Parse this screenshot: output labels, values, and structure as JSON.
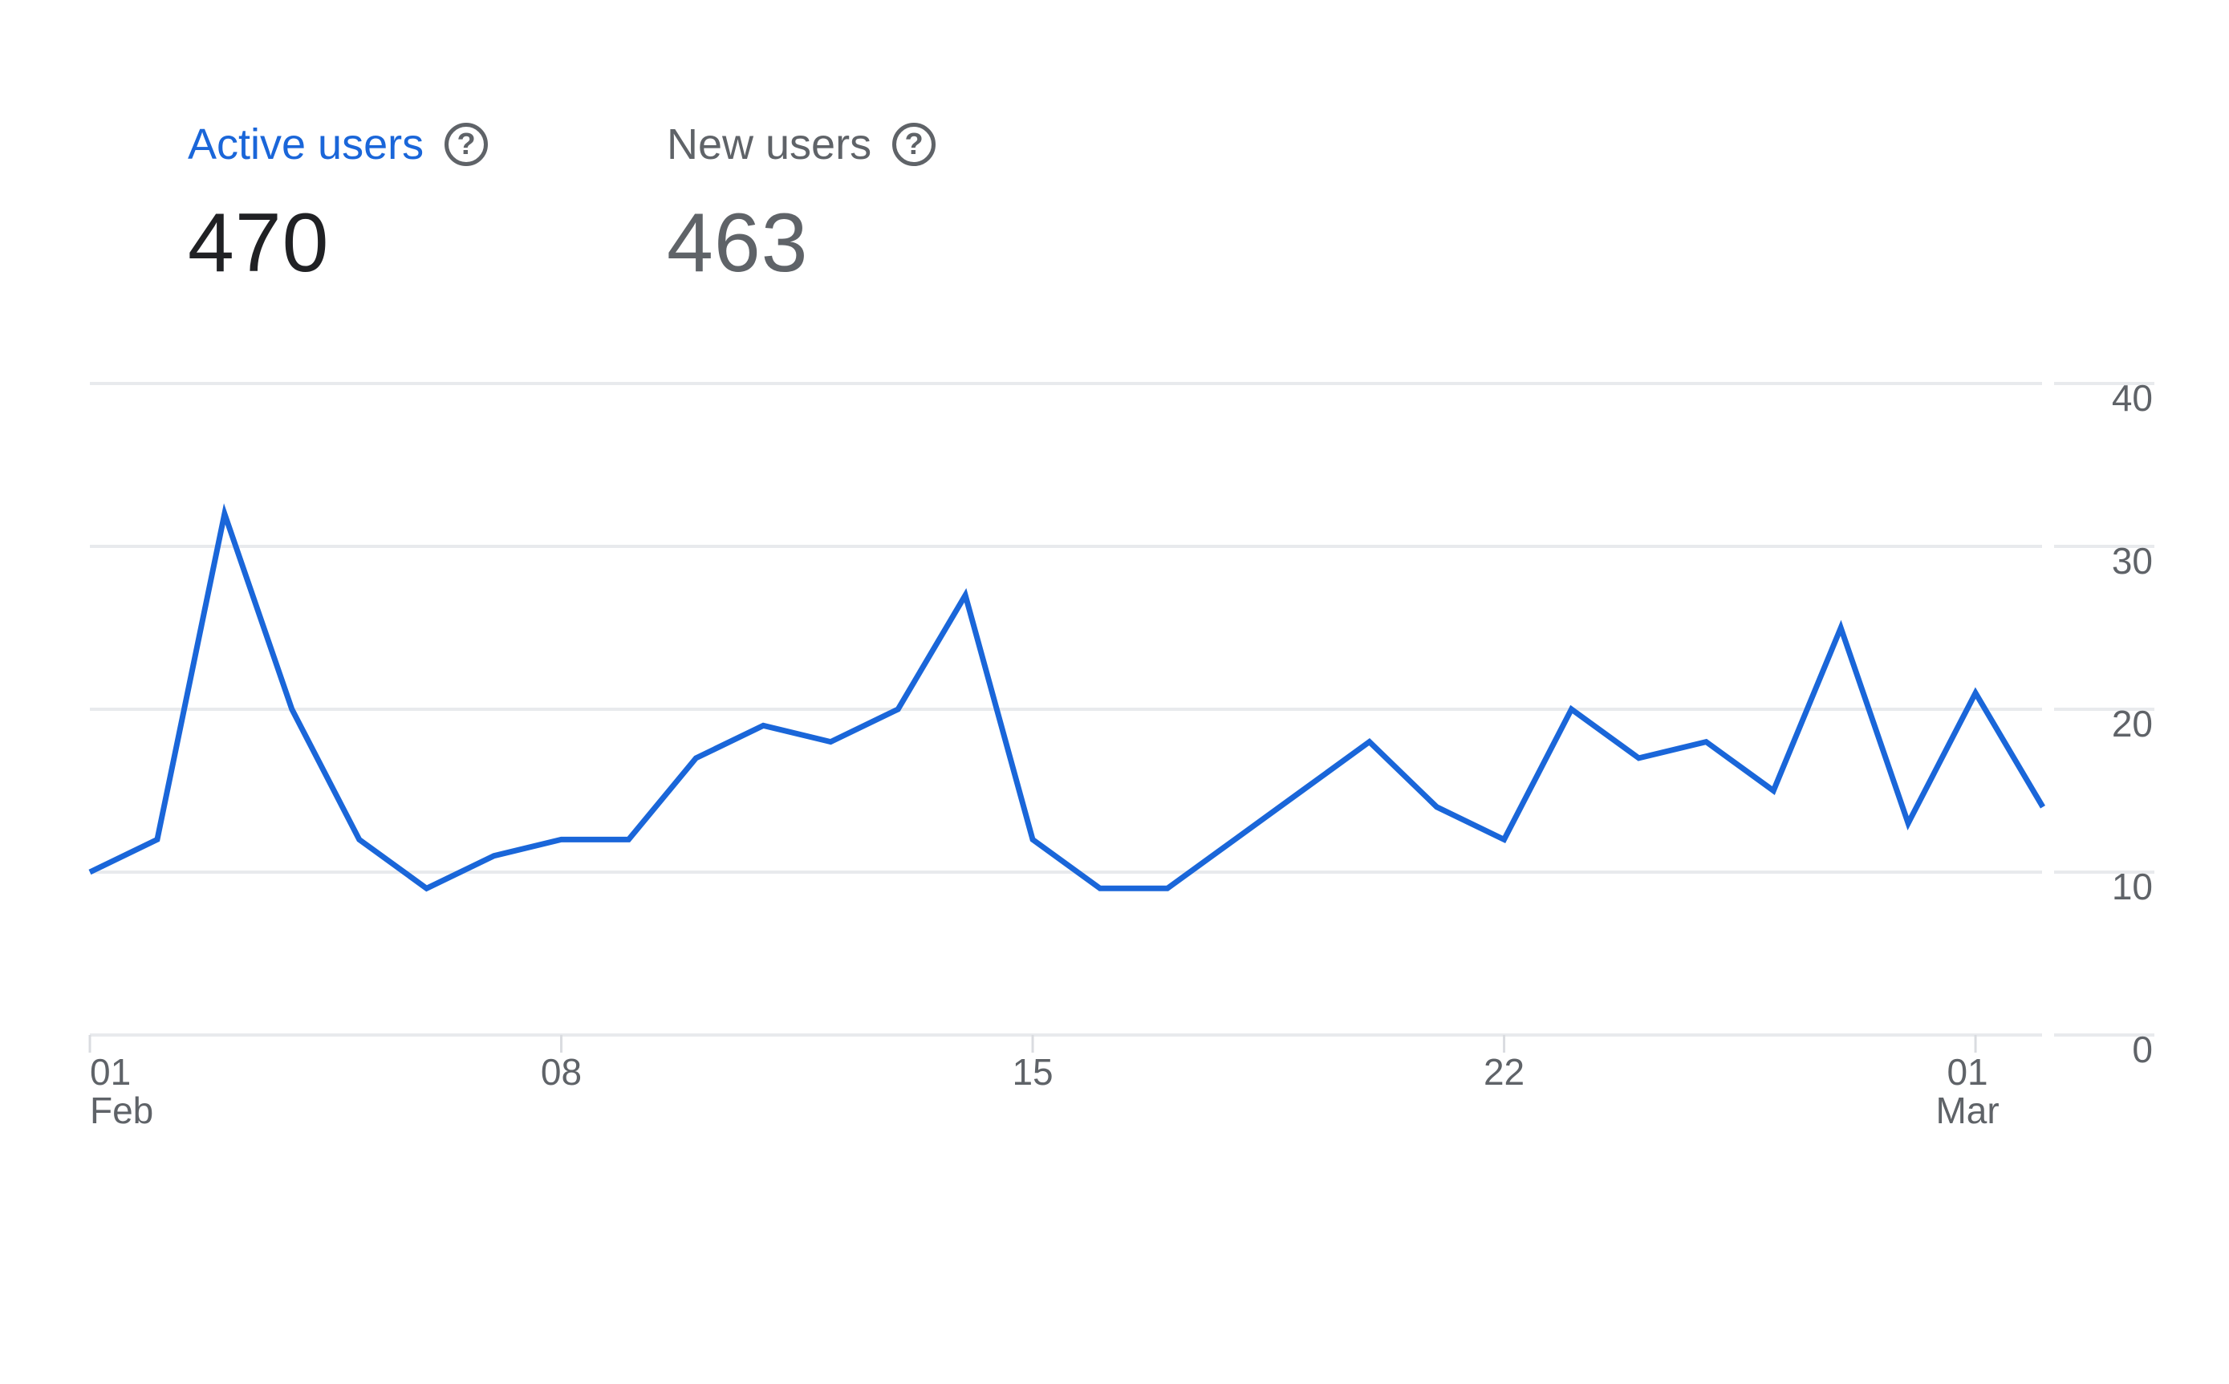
{
  "metrics": [
    {
      "label": "Active users",
      "value": "470",
      "active": true
    },
    {
      "label": "New users",
      "value": "463",
      "active": false
    }
  ],
  "icons": {
    "help": "help-circle-icon"
  },
  "colors": {
    "series": "#1a66d9",
    "grid": "#e8eaed",
    "text": "#5f6368"
  },
  "chart_data": {
    "type": "line",
    "x": [
      "Feb 01",
      "Feb 02",
      "Feb 03",
      "Feb 04",
      "Feb 05",
      "Feb 06",
      "Feb 07",
      "Feb 08",
      "Feb 09",
      "Feb 10",
      "Feb 11",
      "Feb 12",
      "Feb 13",
      "Feb 14",
      "Feb 15",
      "Feb 16",
      "Feb 17",
      "Feb 18",
      "Feb 19",
      "Feb 20",
      "Feb 21",
      "Feb 22",
      "Feb 23",
      "Feb 24",
      "Feb 25",
      "Feb 26",
      "Feb 27",
      "Feb 28",
      "Mar 01",
      "Mar 02"
    ],
    "series": [
      {
        "values": [
          10,
          12,
          32,
          20,
          12,
          9,
          11,
          12,
          12,
          17,
          19,
          18,
          20,
          27,
          12,
          9,
          9,
          12,
          15,
          18,
          14,
          12,
          20,
          17,
          18,
          15,
          25,
          13,
          21,
          14
        ]
      }
    ],
    "ylim": [
      0,
      40
    ],
    "yticks": [
      "0",
      "10",
      "20",
      "30",
      "40"
    ],
    "xticks": [
      {
        "index": 0,
        "day": "01",
        "month": "Feb"
      },
      {
        "index": 7,
        "day": "08",
        "month": ""
      },
      {
        "index": 14,
        "day": "15",
        "month": ""
      },
      {
        "index": 21,
        "day": "22",
        "month": ""
      },
      {
        "index": 28,
        "day": "01",
        "month": "Mar"
      }
    ],
    "grid": true,
    "yaxis_position": "right"
  }
}
